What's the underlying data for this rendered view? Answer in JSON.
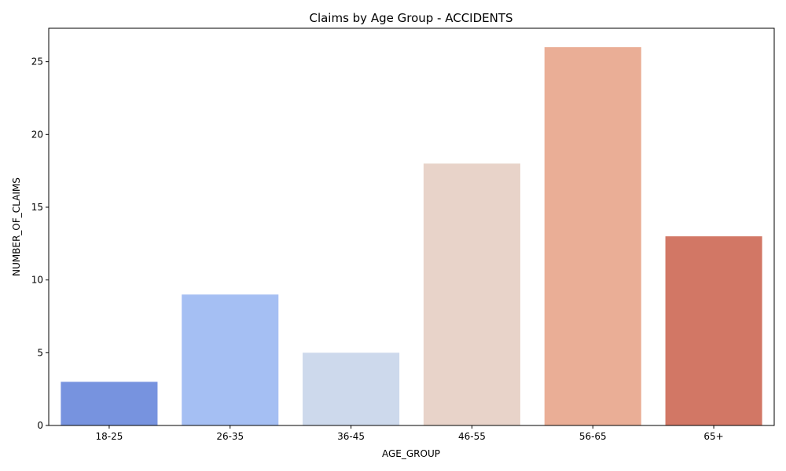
{
  "chart_data": {
    "type": "bar",
    "title": "Claims by Age Group - ACCIDENTS",
    "xlabel": "AGE_GROUP",
    "ylabel": "NUMBER_OF_CLAIMS",
    "categories": [
      "18-25",
      "26-35",
      "36-45",
      "46-55",
      "56-65",
      "65+"
    ],
    "values": [
      3,
      9,
      5,
      18,
      26,
      13
    ],
    "colors": [
      "#7793df",
      "#a5bff3",
      "#cdd9ec",
      "#e8d3c9",
      "#eaae96",
      "#d27765"
    ],
    "ylim": [
      0,
      27.3
    ],
    "yticks": [
      0,
      5,
      10,
      15,
      20,
      25
    ],
    "grid": false,
    "legend": "none"
  }
}
